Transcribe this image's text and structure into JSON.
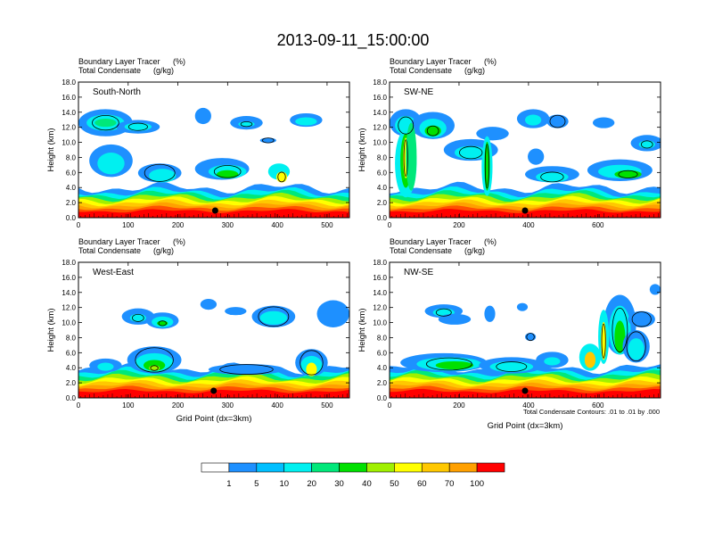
{
  "figure": {
    "title": "2013-09-11_15:00:00",
    "footnote": "Total Condensate Contours: .01 to .01 by .000"
  },
  "colorbar": {
    "levels": [
      "1",
      "5",
      "10",
      "20",
      "30",
      "40",
      "50",
      "60",
      "70",
      "100"
    ],
    "colors": [
      "#ffffff",
      "#1e90ff",
      "#00bfff",
      "#00f0f0",
      "#00e87a",
      "#00e000",
      "#a0f000",
      "#ffff00",
      "#ffc800",
      "#ffa000",
      "#ff5000",
      "#ff0000"
    ]
  },
  "chart_data": [
    {
      "type": "heatmap",
      "panel": "South-North",
      "subtitle_left": "Boundary Layer Tracer",
      "subtitle_units": "(%)",
      "subtitle2_left": "Total Condensate",
      "subtitle2_units": "(g/kg)",
      "ylabel": "Height (km)",
      "xlabel": "",
      "xlim": [
        0,
        545
      ],
      "ylim": [
        0,
        18
      ],
      "xticks": [
        "0",
        "100",
        "200",
        "300",
        "400",
        "500"
      ],
      "yticks": [
        "0.0",
        "2.0",
        "4.0",
        "6.0",
        "8.0",
        "10.0",
        "12.0",
        "14.0",
        "16.0",
        "18.0"
      ],
      "marker_x": 275
    },
    {
      "type": "heatmap",
      "panel": "SW-NE",
      "subtitle_left": "Boundary Layer Tracer",
      "subtitle_units": "(%)",
      "subtitle2_left": "Total Condensate",
      "subtitle2_units": "(g/kg)",
      "ylabel": "Height (km)",
      "xlabel": "",
      "xlim": [
        0,
        780
      ],
      "ylim": [
        0,
        18
      ],
      "xticks": [
        "0",
        "200",
        "400",
        "600"
      ],
      "yticks": [
        "0.0",
        "2.0",
        "4.0",
        "6.0",
        "8.0",
        "10.0",
        "12.0",
        "14.0",
        "16.0",
        "18.0"
      ],
      "marker_x": 390
    },
    {
      "type": "heatmap",
      "panel": "West-East",
      "subtitle_left": "Boundary Layer Tracer",
      "subtitle_units": "(%)",
      "subtitle2_left": "Total Condensate",
      "subtitle2_units": "(g/kg)",
      "ylabel": "Height (km)",
      "xlabel": "Grid Point (dx=3km)",
      "xlim": [
        0,
        545
      ],
      "ylim": [
        0,
        18
      ],
      "xticks": [
        "0",
        "100",
        "200",
        "300",
        "400",
        "500"
      ],
      "yticks": [
        "0.0",
        "2.0",
        "4.0",
        "6.0",
        "8.0",
        "10.0",
        "12.0",
        "14.0",
        "16.0",
        "18.0"
      ],
      "marker_x": 272
    },
    {
      "type": "heatmap",
      "panel": "NW-SE",
      "subtitle_left": "Boundary Layer Tracer",
      "subtitle_units": "(%)",
      "subtitle2_left": "Total Condensate",
      "subtitle2_units": "(g/kg)",
      "ylabel": "Height (km)",
      "xlabel": "Grid Point (dx=3km)",
      "xlim": [
        0,
        780
      ],
      "ylim": [
        0,
        18
      ],
      "xticks": [
        "0",
        "200",
        "400",
        "600"
      ],
      "yticks": [
        "0.0",
        "2.0",
        "4.0",
        "6.0",
        "8.0",
        "10.0",
        "12.0",
        "14.0",
        "16.0",
        "18.0"
      ],
      "marker_x": 390
    }
  ]
}
